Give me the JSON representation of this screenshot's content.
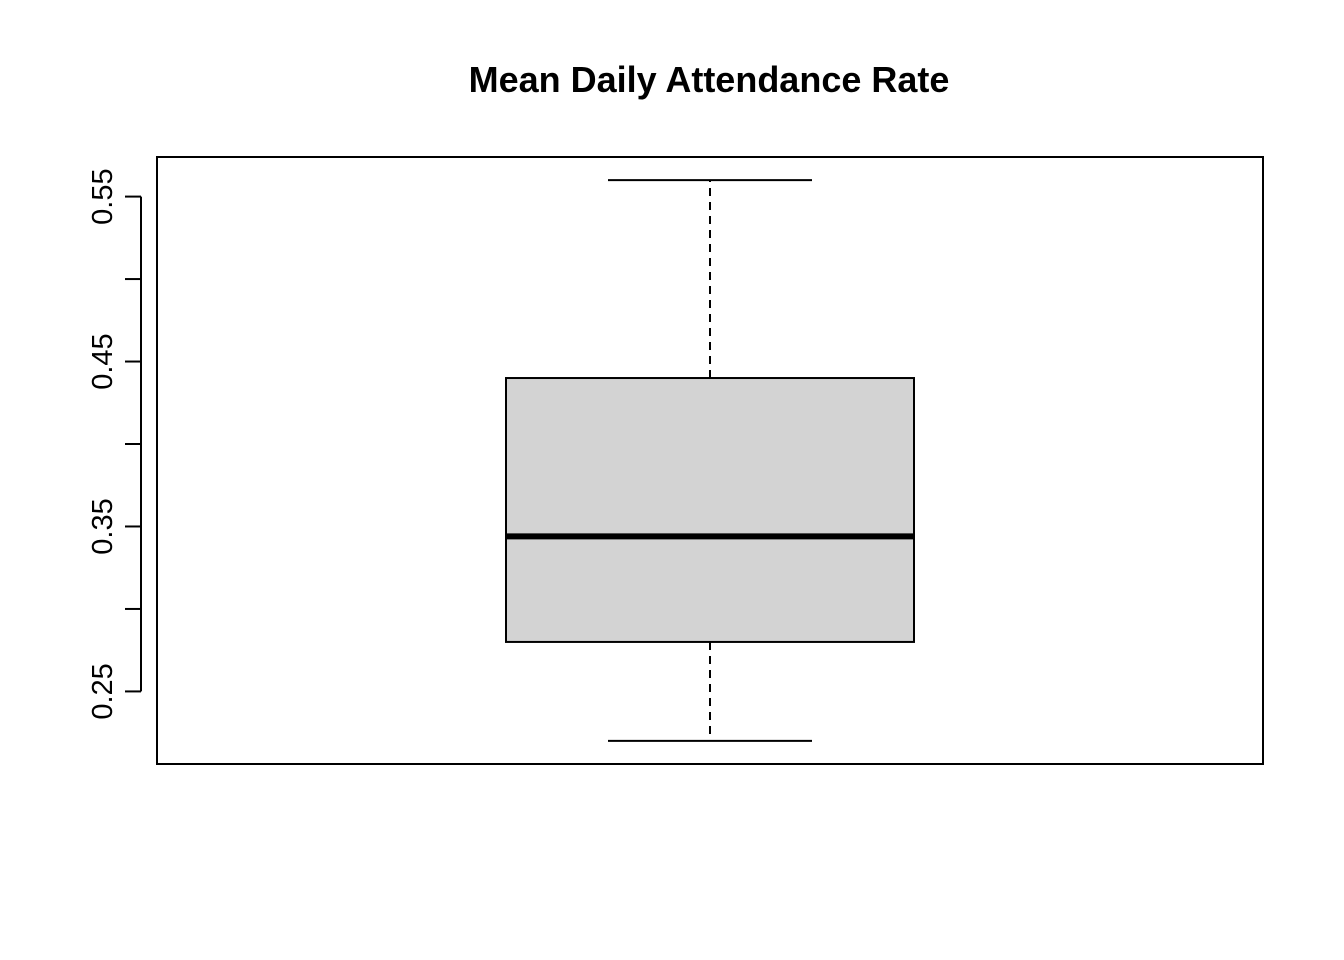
{
  "chart_data": {
    "type": "box",
    "title": "Mean Daily Attendance Rate",
    "xlabel": "",
    "ylabel": "",
    "ylim": [
      0.206,
      0.574
    ],
    "y_ticks": [
      0.25,
      0.3,
      0.35,
      0.4,
      0.45,
      0.5,
      0.55
    ],
    "y_tick_labels": [
      "0.25",
      "",
      "0.35",
      "",
      "0.45",
      "",
      "0.55"
    ],
    "box": {
      "min": 0.22,
      "q1": 0.28,
      "median": 0.344,
      "q3": 0.44,
      "max": 0.56
    },
    "grid": false,
    "legend": "none",
    "colors": {
      "box_fill": "#d3d3d3",
      "lines": "#000000",
      "background": "#ffffff"
    }
  }
}
